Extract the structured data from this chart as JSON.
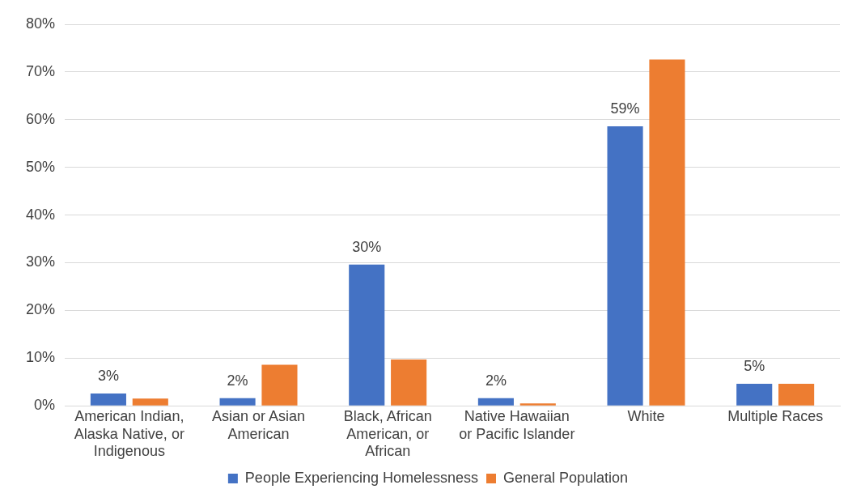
{
  "chart_data": {
    "type": "bar",
    "categories": [
      "American Indian, Alaska Native, or Indigenous",
      "Asian or Asian American",
      "Black, African American, or African",
      "Native Hawaiian or Pacific Islander",
      "White",
      "Multiple Races"
    ],
    "series": [
      {
        "name": "People Experiencing Homelessness",
        "color": "#4472c4",
        "values": [
          2.6,
          1.6,
          29.6,
          1.6,
          58.6,
          4.6
        ],
        "value_labels": [
          "3%",
          "2%",
          "30%",
          "2%",
          "59%",
          "5%"
        ]
      },
      {
        "name": "General Population",
        "color": "#ed7d31",
        "values": [
          1.5,
          8.6,
          9.7,
          0.5,
          72.6,
          4.6
        ]
      }
    ],
    "ylim": [
      0,
      80
    ],
    "yticks": [
      {
        "value": 0,
        "label": "0%"
      },
      {
        "value": 10,
        "label": "10%"
      },
      {
        "value": 20,
        "label": "20%"
      },
      {
        "value": 30,
        "label": "30%"
      },
      {
        "value": 40,
        "label": "40%"
      },
      {
        "value": 50,
        "label": "50%"
      },
      {
        "value": 60,
        "label": "60%"
      },
      {
        "value": 70,
        "label": "70%"
      },
      {
        "value": 80,
        "label": "80%"
      }
    ],
    "grid": "y",
    "legend": "bottom"
  }
}
